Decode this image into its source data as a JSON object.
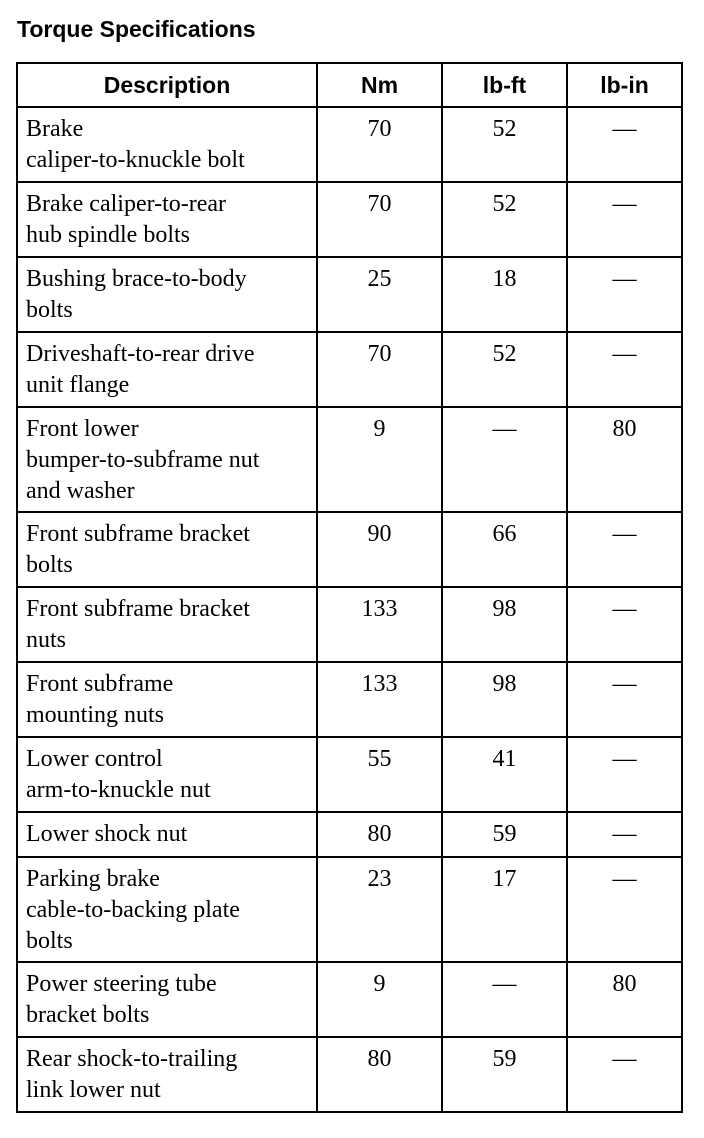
{
  "title": "Torque Specifications",
  "columns": [
    "Description",
    "Nm",
    "lb-ft",
    "lb-in"
  ],
  "rows": [
    {
      "description": [
        "Brake",
        "caliper-to-knuckle bolt"
      ],
      "nm": "70",
      "lbft": "52",
      "lbin": "—"
    },
    {
      "description": [
        "Brake caliper-to-rear",
        "hub spindle bolts"
      ],
      "nm": "70",
      "lbft": "52",
      "lbin": "—"
    },
    {
      "description": [
        "Bushing brace-to-body",
        "bolts"
      ],
      "nm": "25",
      "lbft": "18",
      "lbin": "—"
    },
    {
      "description": [
        "Driveshaft-to-rear drive",
        "unit flange"
      ],
      "nm": "70",
      "lbft": "52",
      "lbin": "—"
    },
    {
      "description": [
        "Front lower",
        "bumper-to-subframe nut",
        "and washer"
      ],
      "nm": "9",
      "lbft": "—",
      "lbin": "80"
    },
    {
      "description": [
        "Front subframe bracket",
        "bolts"
      ],
      "nm": "90",
      "lbft": "66",
      "lbin": "—"
    },
    {
      "description": [
        "Front subframe bracket",
        "nuts"
      ],
      "nm": "133",
      "lbft": "98",
      "lbin": "—"
    },
    {
      "description": [
        "Front subframe",
        "mounting nuts"
      ],
      "nm": "133",
      "lbft": "98",
      "lbin": "—"
    },
    {
      "description": [
        "Lower control",
        "arm-to-knuckle nut"
      ],
      "nm": "55",
      "lbft": "41",
      "lbin": "—"
    },
    {
      "description": [
        "Lower shock nut"
      ],
      "nm": "80",
      "lbft": "59",
      "lbin": "—"
    },
    {
      "description": [
        "Parking brake",
        "cable-to-backing plate",
        "bolts"
      ],
      "nm": "23",
      "lbft": "17",
      "lbin": "—"
    },
    {
      "description": [
        "Power steering tube",
        "bracket bolts"
      ],
      "nm": "9",
      "lbft": "—",
      "lbin": "80"
    },
    {
      "description": [
        "Rear shock-to-trailing",
        "link lower nut"
      ],
      "nm": "80",
      "lbft": "59",
      "lbin": "—"
    }
  ]
}
